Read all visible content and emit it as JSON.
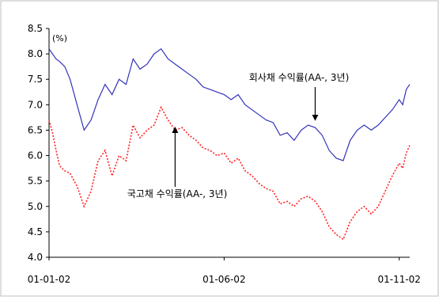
{
  "chart_data": {
    "type": "line",
    "unit_label": "(%)",
    "ylim": [
      4.0,
      8.5
    ],
    "yticks": [
      "8.5",
      "8.0",
      "7.5",
      "7.0",
      "6.5",
      "6.0",
      "5.5",
      "5.0",
      "4.5",
      "4.0"
    ],
    "x_tick_labels": [
      "01-01-02",
      "01-06-02",
      "01-11-02"
    ],
    "x_tick_positions": [
      0,
      5,
      10
    ],
    "xlim": [
      0,
      10.3
    ],
    "grid": false,
    "legend": "none",
    "annotations": [
      {
        "text": "회사채 수익률(AA-, 3년)",
        "series": 0,
        "x": 7.6,
        "y": 6.65
      },
      {
        "text": "국고채 수익률(AA-, 3년)",
        "series": 1,
        "x": 3.6,
        "y": 6.6
      }
    ],
    "series": [
      {
        "color": "#3333bb",
        "style": "solid",
        "x": [
          0.0,
          0.1,
          0.2,
          0.3,
          0.45,
          0.6,
          0.8,
          1.0,
          1.2,
          1.4,
          1.6,
          1.8,
          2.0,
          2.2,
          2.4,
          2.6,
          2.8,
          3.0,
          3.2,
          3.4,
          3.6,
          3.8,
          4.0,
          4.2,
          4.4,
          4.6,
          4.8,
          5.0,
          5.2,
          5.4,
          5.6,
          5.8,
          6.0,
          6.2,
          6.4,
          6.6,
          6.8,
          7.0,
          7.2,
          7.4,
          7.6,
          7.8,
          8.0,
          8.2,
          8.4,
          8.6,
          8.8,
          9.0,
          9.2,
          9.4,
          9.6,
          9.8,
          10.0,
          10.1,
          10.2,
          10.3
        ],
        "values": [
          8.1,
          8.0,
          7.9,
          7.85,
          7.75,
          7.5,
          7.0,
          6.5,
          6.7,
          7.1,
          7.4,
          7.2,
          7.5,
          7.4,
          7.9,
          7.7,
          7.8,
          8.0,
          8.1,
          7.9,
          7.8,
          7.7,
          7.6,
          7.5,
          7.35,
          7.3,
          7.25,
          7.2,
          7.1,
          7.2,
          7.0,
          6.9,
          6.8,
          6.7,
          6.65,
          6.4,
          6.45,
          6.3,
          6.5,
          6.6,
          6.55,
          6.4,
          6.1,
          5.95,
          5.9,
          6.3,
          6.5,
          6.6,
          6.5,
          6.6,
          6.75,
          6.9,
          7.1,
          7.0,
          7.3,
          7.4
        ]
      },
      {
        "color": "#ff2222",
        "style": "dotted",
        "x": [
          0.0,
          0.1,
          0.2,
          0.3,
          0.45,
          0.6,
          0.8,
          1.0,
          1.2,
          1.4,
          1.6,
          1.8,
          2.0,
          2.2,
          2.4,
          2.6,
          2.8,
          3.0,
          3.2,
          3.4,
          3.6,
          3.8,
          4.0,
          4.2,
          4.4,
          4.6,
          4.8,
          5.0,
          5.2,
          5.4,
          5.6,
          5.8,
          6.0,
          6.2,
          6.4,
          6.6,
          6.8,
          7.0,
          7.2,
          7.4,
          7.6,
          7.8,
          8.0,
          8.2,
          8.4,
          8.6,
          8.8,
          9.0,
          9.2,
          9.4,
          9.6,
          9.8,
          10.0,
          10.1,
          10.2,
          10.3
        ],
        "values": [
          6.7,
          6.45,
          6.1,
          5.8,
          5.7,
          5.65,
          5.4,
          5.0,
          5.3,
          5.9,
          6.1,
          5.6,
          6.0,
          5.9,
          6.6,
          6.35,
          6.5,
          6.6,
          6.95,
          6.7,
          6.5,
          6.55,
          6.4,
          6.3,
          6.15,
          6.1,
          6.0,
          6.05,
          5.85,
          5.95,
          5.7,
          5.6,
          5.45,
          5.35,
          5.3,
          5.05,
          5.1,
          5.0,
          5.15,
          5.2,
          5.1,
          4.9,
          4.6,
          4.45,
          4.35,
          4.7,
          4.9,
          5.0,
          4.85,
          5.0,
          5.3,
          5.6,
          5.85,
          5.75,
          6.05,
          6.2
        ]
      }
    ]
  }
}
